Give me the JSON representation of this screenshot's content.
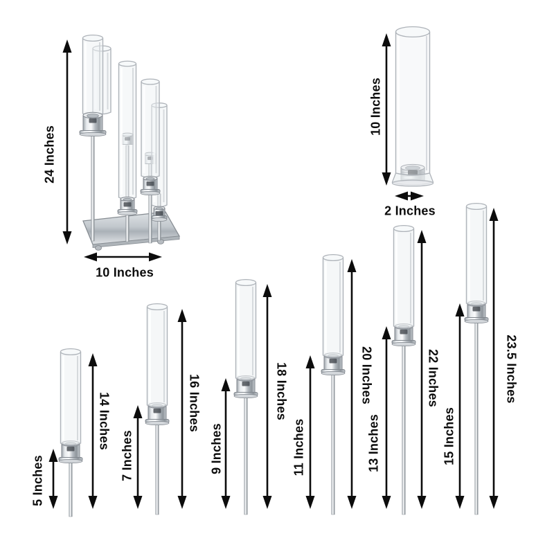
{
  "colors": {
    "background": "#ffffff",
    "annotation": "#0c0c0c",
    "metal_accent": "#c6cbd0",
    "glass_outline": "#aeb3b9"
  },
  "figures": {
    "candelabra": {
      "height_label": "24 Inches",
      "width_label": "10 Inches"
    },
    "glass_shade": {
      "height_label": "10 Inches",
      "width_label": "2 Inches"
    },
    "stands": [
      {
        "stand_height_label": "5 Inches",
        "total_height_label": "14 Inches"
      },
      {
        "stand_height_label": "7 Inches",
        "total_height_label": "16 Inches"
      },
      {
        "stand_height_label": "9 Inches",
        "total_height_label": "18 Inches"
      },
      {
        "stand_height_label": "11 Inches",
        "total_height_label": "20 Inches"
      },
      {
        "stand_height_label": "13 Inches",
        "total_height_label": "22 Inches"
      },
      {
        "stand_height_label": "15 Inches",
        "total_height_label": "23.5 Inches"
      }
    ]
  }
}
